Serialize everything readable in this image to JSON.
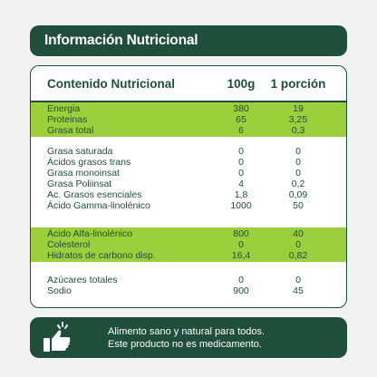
{
  "header": {
    "title": "Información Nutricional"
  },
  "table": {
    "title": "Contenido Nutricional",
    "col_a": "100g",
    "col_b": "1 porción",
    "group1": [
      {
        "label": "Energia",
        "a": "380",
        "b": "19"
      },
      {
        "label": "Proteinas",
        "a": "65",
        "b": "3,25"
      },
      {
        "label": "Grasa total",
        "a": "6",
        "b": "0,3"
      }
    ],
    "group2": [
      {
        "label": "Grasa saturada",
        "a": "0",
        "b": "0"
      },
      {
        "label": "Ácidos grasos trans",
        "a": "0",
        "b": "0"
      },
      {
        "label": "Grasa monoinsat",
        "a": "0",
        "b": "0"
      },
      {
        "label": "Grasa Poliinsat",
        "a": "4",
        "b": "0,2"
      },
      {
        "label": "Ac. Grasos esenciales",
        "a": "1,8",
        "b": "0,09"
      },
      {
        "label": "Ácido Gamma-linolénico",
        "a": "1000",
        "b": "50"
      }
    ],
    "group3": [
      {
        "label": "Ácido Alfa-linolénico",
        "a": "800",
        "b": "40"
      },
      {
        "label": "Colesterol",
        "a": "0",
        "b": "0"
      },
      {
        "label": "Hidratos de carbono disp.",
        "a": "16,4",
        "b": "0,82"
      }
    ],
    "group4": [
      {
        "label": "Azúcares totales",
        "a": "0",
        "b": "0"
      },
      {
        "label": "Sodio",
        "a": "900",
        "b": "45"
      }
    ]
  },
  "footer": {
    "icon": "thumbs-up-icon",
    "line1": "Alimento sano y natural para todos.",
    "line2": "Este producto no es medicamento."
  },
  "colors": {
    "dark_green": "#1f4e3d",
    "lime_green": "#9bcf3c",
    "background": "#f2f2f2"
  }
}
